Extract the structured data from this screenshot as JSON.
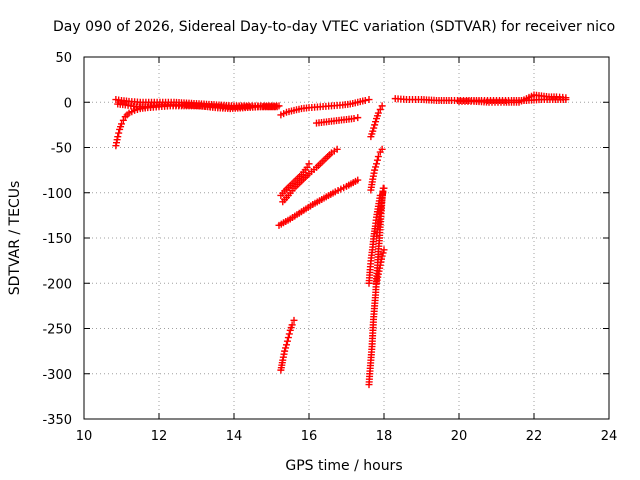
{
  "chart_data": {
    "type": "scatter",
    "title": "Day 090 of 2026, Sidereal Day-to-day VTEC variation (SDTVAR) for receiver nico",
    "xlabel": "GPS time / hours",
    "ylabel": "SDTVAR / TECUs",
    "xlim": [
      10,
      24
    ],
    "ylim": [
      -350,
      50
    ],
    "xticks": [
      10,
      12,
      14,
      16,
      18,
      20,
      22,
      24
    ],
    "yticks": [
      50,
      0,
      -50,
      -100,
      -150,
      -200,
      -250,
      -300,
      -350
    ],
    "grid": true,
    "marker": "plus",
    "color": "#ff0000",
    "series": [
      {
        "points": [
          [
            10.85,
            -48
          ],
          [
            10.9,
            -38
          ],
          [
            10.95,
            -30
          ],
          [
            11.0,
            -24
          ],
          [
            11.05,
            -20
          ],
          [
            11.1,
            -16
          ],
          [
            11.2,
            -12
          ],
          [
            11.35,
            -9
          ],
          [
            11.5,
            -7
          ],
          [
            11.7,
            -6
          ],
          [
            12.0,
            -5
          ],
          [
            12.3,
            -4
          ],
          [
            12.6,
            -4
          ],
          [
            13.0,
            -4
          ],
          [
            13.5,
            -5
          ],
          [
            14.0,
            -5
          ],
          [
            14.5,
            -5
          ],
          [
            15.0,
            -5
          ],
          [
            15.15,
            -5
          ]
        ]
      },
      {
        "points": [
          [
            10.85,
            3
          ],
          [
            11.0,
            2
          ],
          [
            11.2,
            1
          ],
          [
            11.5,
            0
          ],
          [
            11.8,
            0
          ],
          [
            12.1,
            0
          ],
          [
            12.4,
            0
          ],
          [
            12.8,
            -1
          ],
          [
            13.2,
            -2
          ],
          [
            13.6,
            -3
          ],
          [
            14.0,
            -4
          ],
          [
            14.4,
            -4
          ],
          [
            14.8,
            -4
          ],
          [
            15.2,
            -4
          ]
        ]
      },
      {
        "points": [
          [
            10.9,
            -2
          ],
          [
            11.1,
            -3
          ],
          [
            11.4,
            -5
          ],
          [
            11.7,
            -5
          ],
          [
            12.0,
            -3
          ],
          [
            12.3,
            -3
          ],
          [
            12.7,
            -3
          ],
          [
            13.1,
            -4
          ],
          [
            13.5,
            -6
          ],
          [
            13.9,
            -7
          ],
          [
            14.3,
            -6
          ],
          [
            14.7,
            -5
          ],
          [
            15.1,
            -5
          ]
        ]
      },
      {
        "points": [
          [
            15.25,
            -14
          ],
          [
            15.4,
            -11
          ],
          [
            15.6,
            -9
          ],
          [
            15.8,
            -7
          ],
          [
            16.0,
            -6
          ],
          [
            16.3,
            -5
          ],
          [
            16.6,
            -4
          ],
          [
            16.9,
            -3
          ],
          [
            17.1,
            -2
          ],
          [
            17.3,
            0
          ],
          [
            17.5,
            2
          ],
          [
            17.6,
            3
          ]
        ]
      },
      {
        "points": [
          [
            16.2,
            -23
          ],
          [
            16.4,
            -22
          ],
          [
            16.6,
            -21
          ],
          [
            16.8,
            -20
          ],
          [
            17.0,
            -19
          ],
          [
            17.2,
            -18
          ],
          [
            17.3,
            -17
          ]
        ]
      },
      {
        "points": [
          [
            15.25,
            -103
          ],
          [
            15.35,
            -98
          ],
          [
            15.5,
            -92
          ],
          [
            15.65,
            -86
          ],
          [
            15.8,
            -80
          ],
          [
            15.95,
            -72
          ],
          [
            16.0,
            -68
          ]
        ]
      },
      {
        "points": [
          [
            15.3,
            -110
          ],
          [
            15.45,
            -103
          ],
          [
            15.6,
            -95
          ],
          [
            15.8,
            -87
          ],
          [
            16.0,
            -79
          ],
          [
            16.2,
            -72
          ],
          [
            16.4,
            -64
          ],
          [
            16.6,
            -56
          ],
          [
            16.75,
            -52
          ]
        ]
      },
      {
        "points": [
          [
            15.2,
            -136
          ],
          [
            15.5,
            -129
          ],
          [
            15.8,
            -121
          ],
          [
            16.1,
            -113
          ],
          [
            16.4,
            -106
          ],
          [
            16.7,
            -99
          ],
          [
            17.0,
            -93
          ],
          [
            17.3,
            -86
          ]
        ]
      },
      {
        "points": [
          [
            15.25,
            -296
          ],
          [
            15.3,
            -285
          ],
          [
            15.35,
            -275
          ],
          [
            15.4,
            -268
          ],
          [
            15.45,
            -260
          ],
          [
            15.5,
            -252
          ],
          [
            15.55,
            -246
          ],
          [
            15.6,
            -241
          ]
        ]
      },
      {
        "points": [
          [
            17.65,
            -38
          ],
          [
            17.7,
            -32
          ],
          [
            17.75,
            -25
          ],
          [
            17.8,
            -18
          ],
          [
            17.85,
            -12
          ],
          [
            17.9,
            -8
          ],
          [
            17.95,
            -4
          ]
        ]
      },
      {
        "points": [
          [
            17.65,
            -97
          ],
          [
            17.7,
            -85
          ],
          [
            17.75,
            -75
          ],
          [
            17.8,
            -68
          ],
          [
            17.85,
            -60
          ],
          [
            17.9,
            -55
          ],
          [
            17.95,
            -52
          ]
        ]
      },
      {
        "points": [
          [
            17.6,
            -312
          ],
          [
            17.62,
            -300
          ],
          [
            17.65,
            -285
          ],
          [
            17.68,
            -270
          ],
          [
            17.7,
            -255
          ],
          [
            17.72,
            -240
          ],
          [
            17.75,
            -225
          ],
          [
            17.78,
            -210
          ],
          [
            17.8,
            -195
          ],
          [
            17.83,
            -180
          ],
          [
            17.85,
            -165
          ],
          [
            17.88,
            -150
          ],
          [
            17.9,
            -135
          ],
          [
            17.93,
            -120
          ],
          [
            17.95,
            -105
          ],
          [
            17.98,
            -95
          ]
        ]
      },
      {
        "points": [
          [
            17.6,
            -200
          ],
          [
            17.63,
            -185
          ],
          [
            17.66,
            -172
          ],
          [
            17.7,
            -160
          ],
          [
            17.73,
            -148
          ],
          [
            17.77,
            -137
          ],
          [
            17.8,
            -127
          ],
          [
            17.85,
            -115
          ],
          [
            17.9,
            -103
          ]
        ]
      },
      {
        "points": [
          [
            17.8,
            -148
          ],
          [
            17.83,
            -140
          ],
          [
            17.87,
            -130
          ],
          [
            17.9,
            -122
          ],
          [
            17.93,
            -112
          ],
          [
            17.97,
            -100
          ],
          [
            18.0,
            -95
          ]
        ]
      },
      {
        "points": [
          [
            17.8,
            -200
          ],
          [
            17.85,
            -190
          ],
          [
            17.9,
            -180
          ],
          [
            17.95,
            -170
          ],
          [
            18.0,
            -163
          ]
        ]
      },
      {
        "points": [
          [
            18.3,
            4
          ],
          [
            18.6,
            3
          ],
          [
            19.0,
            3
          ],
          [
            19.4,
            2
          ],
          [
            19.8,
            2
          ],
          [
            20.2,
            2
          ],
          [
            20.6,
            2
          ],
          [
            21.0,
            2
          ],
          [
            21.4,
            2
          ],
          [
            21.8,
            2
          ],
          [
            22.2,
            3
          ],
          [
            22.5,
            3
          ],
          [
            22.85,
            3
          ]
        ]
      },
      {
        "points": [
          [
            20.0,
            1
          ],
          [
            20.4,
            1
          ],
          [
            20.8,
            0
          ],
          [
            21.2,
            0
          ],
          [
            21.6,
            0
          ],
          [
            22.0,
            8
          ],
          [
            22.2,
            7
          ],
          [
            22.4,
            6
          ],
          [
            22.6,
            6
          ],
          [
            22.85,
            5
          ]
        ]
      }
    ]
  }
}
